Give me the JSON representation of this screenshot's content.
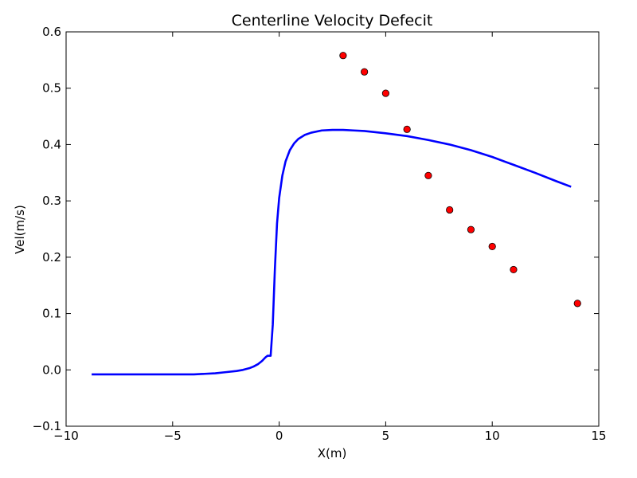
{
  "chart_data": {
    "type": "line",
    "title": "Centerline Velocity Defecit",
    "xlabel": "X(m)",
    "ylabel": "Vel(m/s)",
    "xlim": [
      -10,
      15
    ],
    "ylim": [
      -0.1,
      0.6
    ],
    "grid": false,
    "xticks": [
      -10,
      -5,
      0,
      5,
      10,
      15
    ],
    "xtick_labels": [
      "−10",
      "−5",
      "0",
      "5",
      "10",
      "15"
    ],
    "yticks": [
      -0.1,
      0.0,
      0.1,
      0.2,
      0.3,
      0.4,
      0.5,
      0.6
    ],
    "ytick_labels": [
      "−0.1",
      "0.0",
      "0.1",
      "0.2",
      "0.3",
      "0.4",
      "0.5",
      "0.6"
    ],
    "series": [
      {
        "type": "line",
        "color": "#0000ff",
        "x": [
          -8.8,
          -7,
          -5,
          -4,
          -3.5,
          -3,
          -2.5,
          -2,
          -1.7,
          -1.4,
          -1.2,
          -1.0,
          -0.8,
          -0.65,
          -0.55,
          -0.45,
          -0.4,
          -0.3,
          -0.2,
          -0.1,
          0.0,
          0.15,
          0.3,
          0.5,
          0.7,
          0.9,
          1.2,
          1.5,
          2.0,
          2.5,
          3.0,
          3.5,
          4.0,
          5.0,
          6.0,
          7.0,
          8.0,
          9.0,
          10.0,
          11.0,
          12.0,
          13.0,
          13.7
        ],
        "y": [
          -0.008,
          -0.008,
          -0.008,
          -0.008,
          -0.007,
          -0.006,
          -0.004,
          -0.002,
          0.0,
          0.003,
          0.006,
          0.01,
          0.016,
          0.022,
          0.025,
          0.025,
          0.025,
          0.08,
          0.18,
          0.26,
          0.305,
          0.345,
          0.37,
          0.39,
          0.402,
          0.41,
          0.417,
          0.421,
          0.425,
          0.426,
          0.426,
          0.425,
          0.424,
          0.42,
          0.415,
          0.408,
          0.4,
          0.39,
          0.378,
          0.364,
          0.35,
          0.335,
          0.325
        ]
      },
      {
        "type": "scatter",
        "color": "#ff0000",
        "edge_color": "#000000",
        "x": [
          3,
          4,
          5,
          6,
          7,
          8,
          9,
          10,
          11,
          14
        ],
        "y": [
          0.558,
          0.529,
          0.491,
          0.427,
          0.345,
          0.284,
          0.249,
          0.219,
          0.178,
          0.118
        ]
      }
    ]
  }
}
